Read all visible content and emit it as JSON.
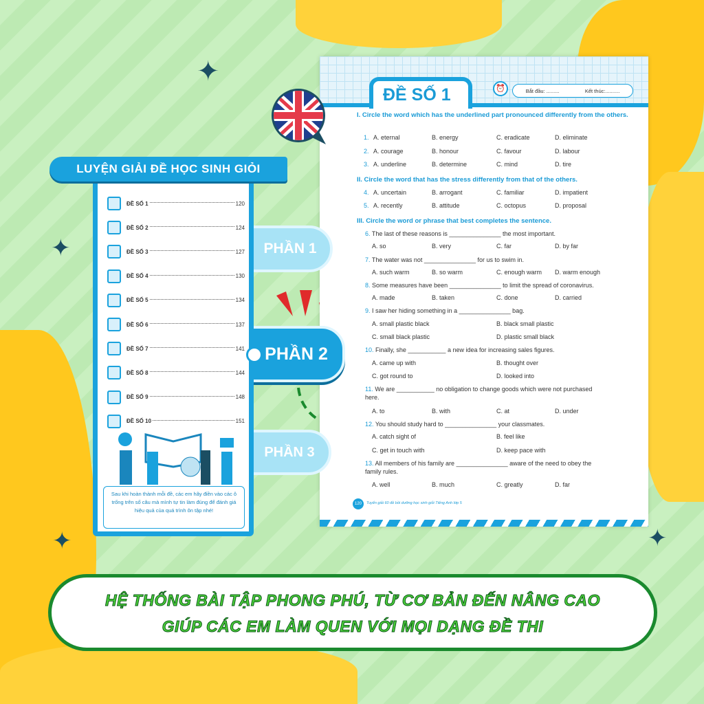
{
  "left_panel": {
    "title": "LUYỆN GIẢI ĐỀ HỌC SINH GIỎI",
    "items": [
      {
        "label": "ĐỀ SỐ 1",
        "page": "120"
      },
      {
        "label": "ĐỀ SỐ 2",
        "page": "124"
      },
      {
        "label": "ĐỀ SỐ 3",
        "page": "127"
      },
      {
        "label": "ĐỀ SỐ 4",
        "page": "130"
      },
      {
        "label": "ĐỀ SỐ 5",
        "page": "134"
      },
      {
        "label": "ĐỀ SỐ 6",
        "page": "137"
      },
      {
        "label": "ĐỀ SỐ 7",
        "page": "141"
      },
      {
        "label": "ĐỀ SỐ 8",
        "page": "144"
      },
      {
        "label": "ĐỀ SỐ 9",
        "page": "148"
      },
      {
        "label": "ĐỀ SỐ 10",
        "page": "151"
      }
    ],
    "note": "Sau khi hoàn thành mỗi đề, các em hãy điền vào các ô trống trên số câu mà mình tự tin làm đúng để đánh giá hiệu quả của quá trình ôn tập nhé!"
  },
  "tabs": [
    "PHẦN 1",
    "PHẦN 2",
    "PHẦN 3"
  ],
  "worksheet": {
    "title": "ĐỀ SỐ 1",
    "start_label": "Bắt đầu: .........",
    "end_label": "Kết thúc:..........",
    "sec1": "I. Circle the word which has the underlined part pronounced differently from the others.",
    "sec2": "II. Circle the word that has the stress differently from that of the others.",
    "sec3": "III. Circle the word or phrase that best completes the sentence.",
    "questions": [
      {
        "n": "1.",
        "opts": [
          "A. eternal",
          "B. energy",
          "C. eradicate",
          "D. eliminate"
        ]
      },
      {
        "n": "2.",
        "opts": [
          "A. courage",
          "B. honour",
          "C. favour",
          "D. labour"
        ]
      },
      {
        "n": "3.",
        "opts": [
          "A. underline",
          "B. determine",
          "C. mind",
          "D. tire"
        ]
      },
      {
        "n": "4.",
        "opts": [
          "A. uncertain",
          "B. arrogant",
          "C. familiar",
          "D. impatient"
        ]
      },
      {
        "n": "5.",
        "opts": [
          "A. recently",
          "B. attitude",
          "C. octopus",
          "D. proposal"
        ]
      },
      {
        "n": "6.",
        "text": "The last of these reasons is _______________ the most important.",
        "opts": [
          "A. so",
          "B. very",
          "C. far",
          "D. by far"
        ]
      },
      {
        "n": "7.",
        "text": "The water was not _______________ for us to swim in.",
        "opts": [
          "A. such warm",
          "B. so warm",
          "C. enough warm",
          "D. warm enough"
        ]
      },
      {
        "n": "8.",
        "text": "Some measures have been _______________ to limit the spread of coronavirus.",
        "opts": [
          "A. made",
          "B. taken",
          "C. done",
          "D. carried"
        ]
      },
      {
        "n": "9.",
        "text": "I saw her hiding something in a _______________ bag.",
        "opts": [
          "A. small plastic black",
          "B. black small plastic",
          "C. small black plastic",
          "D. plastic small black"
        ]
      },
      {
        "n": "10.",
        "text": "Finally, she ___________ a new idea for increasing sales figures.",
        "opts": [
          "A. came up with",
          "B. thought over",
          "C. got round to",
          "D. looked into"
        ]
      },
      {
        "n": "11.",
        "text": "We are ___________ no obligation to change goods which were not purchased here.",
        "opts": [
          "A. to",
          "B. with",
          "C. at",
          "D. under"
        ]
      },
      {
        "n": "12.",
        "text": "You should study hard to _______________ your classmates.",
        "opts": [
          "A. catch sight of",
          "B. feel like",
          "C. get in touch with",
          "D. keep pace with"
        ]
      },
      {
        "n": "13.",
        "text": "All members of his family are _______________ aware of the need to obey the family rules.",
        "opts": [
          "A. well",
          "B. much",
          "C. greatly",
          "D. far"
        ]
      }
    ],
    "footer_page": "120",
    "footer_text": "Tuyển giải 60 đề bồi dưỡng học sinh giỏi Tiếng Anh lớp 5"
  },
  "banner": {
    "line1": "HỆ THỐNG BÀI TẬP PHONG PHÚ, TỪ CƠ BẢN ĐẾN NÂNG CAO",
    "line2": "GIÚP CÁC EM LÀM QUEN VỚI MỌI DẠNG ĐỀ THI"
  },
  "colors": {
    "blue": "#1aa2dd",
    "green": "#1a8a2e",
    "yellow": "#ffc81e"
  }
}
